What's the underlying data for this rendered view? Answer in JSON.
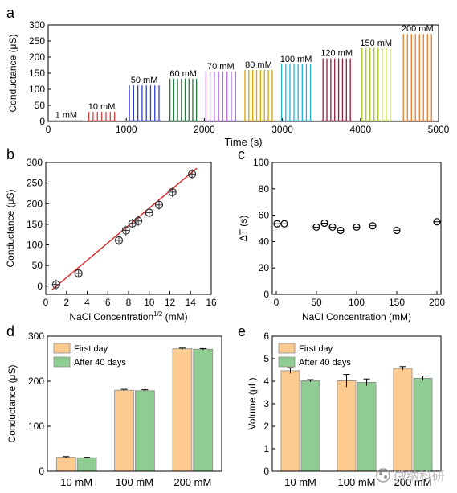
{
  "chart_data": [
    {
      "panel": "a",
      "type": "line",
      "xlabel": "Time (s)",
      "ylabel": "Conductance (μS)",
      "xlim": [
        0,
        5000
      ],
      "ylim": [
        0,
        300
      ],
      "xticks": [
        0,
        1000,
        2000,
        3000,
        4000,
        5000
      ],
      "yticks": [
        0,
        50,
        100,
        150,
        200,
        250,
        300
      ],
      "groups": [
        {
          "label": "1 mM",
          "start": 40,
          "end": 420,
          "pulses": 8,
          "peak": 4,
          "color": "#7f7f7f"
        },
        {
          "label": "10 mM",
          "start": 520,
          "end": 850,
          "pulses": 7,
          "peak": 30,
          "color": "#e0393e"
        },
        {
          "label": "50 mM",
          "start": 1040,
          "end": 1420,
          "pulses": 8,
          "peak": 112,
          "color": "#2e3fc9"
        },
        {
          "label": "60 mM",
          "start": 1560,
          "end": 1900,
          "pulses": 8,
          "peak": 133,
          "color": "#1d7d3c"
        },
        {
          "label": "70 mM",
          "start": 2020,
          "end": 2400,
          "pulses": 8,
          "peak": 155,
          "color": "#b36ae2"
        },
        {
          "label": "80 mM",
          "start": 2520,
          "end": 2870,
          "pulses": 8,
          "peak": 160,
          "color": "#d9a400"
        },
        {
          "label": "100 mM",
          "start": 2990,
          "end": 3360,
          "pulses": 8,
          "peak": 178,
          "color": "#22b5d6"
        },
        {
          "label": "120 mM",
          "start": 3520,
          "end": 3870,
          "pulses": 8,
          "peak": 196,
          "color": "#8b1f3b"
        },
        {
          "label": "150 mM",
          "start": 4020,
          "end": 4380,
          "pulses": 8,
          "peak": 228,
          "color": "#a6c51a"
        },
        {
          "label": "200 mM",
          "start": 4550,
          "end": 4910,
          "pulses": 8,
          "peak": 272,
          "color": "#ef7a22"
        }
      ]
    },
    {
      "panel": "b",
      "type": "scatter",
      "xlabel": "NaCl Concentration",
      "xlabel_sup": "1/2",
      "xlabel_unit": " (mM)",
      "ylabel": "Conductance (μS)",
      "xlim": [
        0,
        16
      ],
      "ylim": [
        -20,
        300
      ],
      "xticks": [
        0,
        2,
        4,
        6,
        8,
        10,
        12,
        14,
        16
      ],
      "yticks": [
        0,
        50,
        100,
        150,
        200,
        250,
        300
      ],
      "x": [
        1.0,
        3.16,
        7.07,
        7.75,
        8.37,
        8.94,
        10.0,
        10.95,
        12.25,
        14.14
      ],
      "y": [
        4,
        31,
        111,
        135,
        152,
        158,
        178,
        197,
        228,
        272
      ],
      "fit": {
        "x": [
          0.6,
          14.6
        ],
        "y": [
          -9,
          286
        ]
      },
      "fit_color": "#e02424"
    },
    {
      "panel": "c",
      "type": "scatter",
      "xlabel": "NaCl Concentration (mM)",
      "ylabel": "ΔT (s)",
      "xlim": [
        -5,
        205
      ],
      "ylim": [
        0,
        100
      ],
      "xticks": [
        0,
        50,
        100,
        150,
        200
      ],
      "yticks": [
        0,
        20,
        40,
        60,
        80,
        100
      ],
      "x": [
        1,
        10,
        50,
        60,
        70,
        80,
        100,
        120,
        150,
        200
      ],
      "y": [
        53.5,
        53.5,
        51,
        54,
        51,
        48.5,
        51,
        52,
        48.5,
        55
      ]
    },
    {
      "panel": "d",
      "type": "bar",
      "categories": [
        "10 mM",
        "100 mM",
        "200 mM"
      ],
      "ylabel": "Conductance (μS)",
      "ylim": [
        0,
        300
      ],
      "yticks": [
        0,
        100,
        200,
        300
      ],
      "legend_placement": "top-left",
      "series": [
        {
          "name": "First day",
          "values": [
            31,
            180,
            272
          ],
          "errors": [
            1.5,
            2,
            1.5
          ],
          "color": "#fdcb8f"
        },
        {
          "name": "After 40 days",
          "values": [
            30,
            179,
            271
          ],
          "errors": [
            1,
            2,
            1.5
          ],
          "color": "#8fcc92"
        }
      ]
    },
    {
      "panel": "e",
      "type": "bar",
      "categories": [
        "10 mM",
        "100 mM",
        "200 mM"
      ],
      "ylabel": "Volume (μL)",
      "ylim": [
        0,
        6
      ],
      "yticks": [
        0,
        1,
        2,
        3,
        4,
        5,
        6
      ],
      "legend_placement": "top-left",
      "series": [
        {
          "name": "First day",
          "values": [
            4.47,
            4.02,
            4.57
          ],
          "errors": [
            0.13,
            0.28,
            0.08
          ],
          "color": "#fdcb8f"
        },
        {
          "name": "After 40 days",
          "values": [
            4.02,
            3.95,
            4.13
          ],
          "errors": [
            0.05,
            0.15,
            0.1
          ],
          "color": "#8fcc92"
        }
      ]
    }
  ],
  "watermark": "微纳科研"
}
